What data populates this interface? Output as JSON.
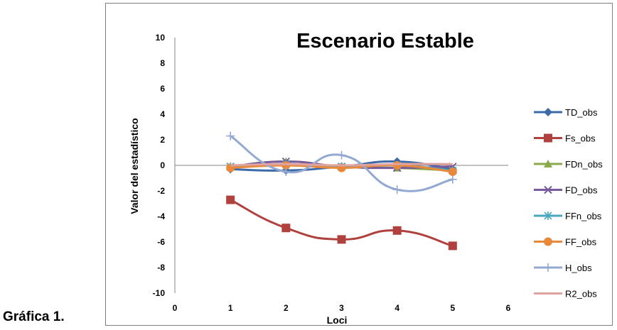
{
  "caption": "Gráfica 1.",
  "chart_data": {
    "type": "line",
    "title": "Escenario Estable",
    "xlabel": "Loci",
    "ylabel": "Valor del estadístico",
    "xlim": [
      0,
      6
    ],
    "ylim": [
      -10,
      10
    ],
    "x_ticks": [
      0,
      1,
      2,
      3,
      4,
      5,
      6
    ],
    "y_ticks": [
      10,
      8,
      6,
      4,
      2,
      0,
      -2,
      -4,
      -6,
      -8,
      -10
    ],
    "legend_position": "right",
    "grid": false,
    "smooth": true,
    "x": [
      1,
      2,
      3,
      4,
      5
    ],
    "series": [
      {
        "name": "TD_obs",
        "color": "#3c6aa8",
        "marker": "diamond",
        "values": [
          -0.3,
          -0.4,
          -0.1,
          0.3,
          -0.3
        ]
      },
      {
        "name": "Fs_obs",
        "color": "#b0413e",
        "marker": "square",
        "values": [
          -2.7,
          -4.9,
          -5.8,
          -5.1,
          -6.3
        ]
      },
      {
        "name": "FDn_obs",
        "color": "#8ba84a",
        "marker": "triangle",
        "values": [
          -0.1,
          0.3,
          -0.1,
          -0.2,
          -0.4
        ]
      },
      {
        "name": "FD_obs",
        "color": "#7a5a9e",
        "marker": "x",
        "values": [
          -0.1,
          0.3,
          -0.1,
          -0.2,
          -0.1
        ]
      },
      {
        "name": "FFn_obs",
        "color": "#4aa7bf",
        "marker": "star",
        "values": [
          -0.1,
          0.1,
          -0.1,
          0.0,
          -0.4
        ]
      },
      {
        "name": "FF_obs",
        "color": "#e8883a",
        "marker": "circle",
        "values": [
          -0.2,
          0.0,
          -0.2,
          0.0,
          -0.5
        ]
      },
      {
        "name": "H_obs",
        "color": "#93a9d2",
        "marker": "plus",
        "values": [
          2.3,
          -0.5,
          0.8,
          -1.9,
          -1.1
        ]
      },
      {
        "name": "R2_obs",
        "color": "#e0a3a0",
        "marker": "none",
        "values": [
          0.0,
          0.1,
          0.0,
          0.1,
          0.1
        ]
      }
    ]
  }
}
